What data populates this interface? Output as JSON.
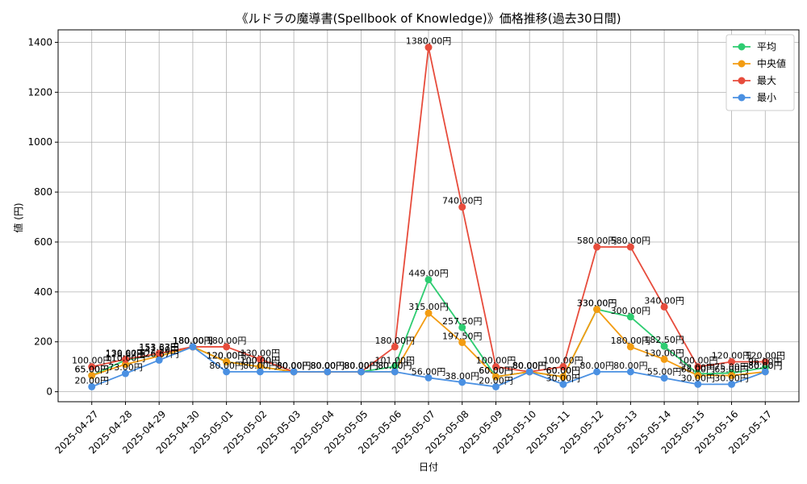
{
  "chart_data": {
    "type": "line",
    "title": "《ルドラの魔導書(Spellbook of Knowledge)》価格推移(過去30日間)",
    "xlabel": "日付",
    "ylabel": "値 (円)",
    "ylim": [
      -40,
      1450
    ],
    "yticks": [
      0,
      200,
      400,
      600,
      800,
      1000,
      1200,
      1400
    ],
    "grid": true,
    "legend_position": "top-right",
    "value_suffix": "円",
    "categories": [
      "2025-04-27",
      "2025-04-28",
      "2025-04-29",
      "2025-04-30",
      "2025-05-01",
      "2025-05-02",
      "2025-05-03",
      "2025-05-04",
      "2025-05-05",
      "2025-05-06",
      "2025-05-07",
      "2025-05-08",
      "2025-05-09",
      "2025-05-10",
      "2025-05-11",
      "2025-05-12",
      "2025-05-13",
      "2025-05-14",
      "2025-05-15",
      "2025-05-16",
      "2025-05-17"
    ],
    "series": [
      {
        "name": "平均",
        "color": "#2ecc71",
        "values": [
          65,
          126.67,
          151.67,
          180,
          120,
          100,
          80,
          80,
          80,
          101,
          449,
          257.5,
          60,
          80,
          60,
          330,
          300,
          182.5,
          72,
          75,
          96
        ]
      },
      {
        "name": "中央値",
        "color": "#f39c12",
        "values": [
          65,
          110,
          142.5,
          180,
          120,
          100,
          80,
          80,
          80,
          80,
          315,
          197.5,
          60,
          80,
          60,
          330,
          180,
          130,
          65,
          65,
          80
        ]
      },
      {
        "name": "最大",
        "color": "#e74c3c",
        "values": [
          100,
          130,
          153.33,
          180,
          180,
          130,
          80,
          80,
          80,
          180,
          1380,
          740,
          100,
          80,
          100,
          580,
          580,
          340,
          100,
          120,
          120
        ]
      },
      {
        "name": "最小",
        "color": "#4a90e2",
        "values": [
          20,
          73,
          126.67,
          180,
          80,
          80,
          80,
          80,
          80,
          80,
          56,
          38,
          20,
          80,
          30,
          80,
          80,
          55,
          30,
          30,
          80
        ]
      }
    ]
  }
}
